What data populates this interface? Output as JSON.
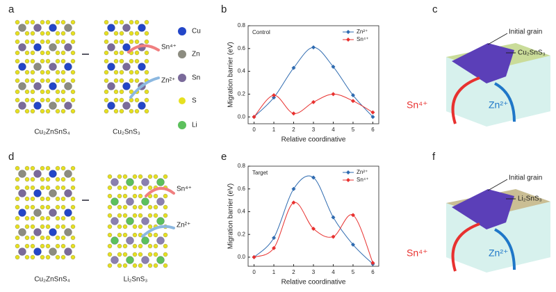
{
  "panel_labels": [
    "a",
    "b",
    "c",
    "d",
    "e",
    "f"
  ],
  "structure_top": {
    "left": "Cu₂ZnSnS₄",
    "right": "Cu₂SnS₃",
    "ions": [
      "Sn⁴⁺",
      "Zn²⁺"
    ]
  },
  "structure_bottom": {
    "left": "Cu₂ZnSnS₄",
    "right": "Li₂SnS₃",
    "ions": [
      "Sn⁴⁺",
      "Zn²⁺"
    ]
  },
  "element_legend": [
    "Cu",
    "Zn",
    "Sn",
    "S",
    "Li"
  ],
  "grain_top": {
    "grain": "Initial grain",
    "phase": "Cu₂SnS₃",
    "ions": [
      "Sn⁴⁺",
      "Zn²⁺"
    ]
  },
  "grain_bottom": {
    "grain": "Initial grain",
    "phase": "Li₂SnS₃",
    "ions": [
      "Sn⁴⁺",
      "Zn²⁺"
    ]
  },
  "chart_data": [
    {
      "type": "line",
      "annotation": "Control",
      "xlabel": "Relative coordinative",
      "ylabel": "Migration barrier (eV)",
      "x": [
        0,
        1,
        2,
        3,
        4,
        5,
        6
      ],
      "xlim": [
        -0.3,
        6.3
      ],
      "xticks": [
        0,
        1,
        2,
        3,
        4,
        5,
        6
      ],
      "ylim": [
        -0.06,
        0.8
      ],
      "yticks": [
        {
          "value": 0,
          "label": "0.0"
        },
        0.2,
        0.4,
        0.6,
        0.8
      ],
      "legend": "upper right",
      "series": [
        {
          "name": "Zn²⁺",
          "color": "#2f6bb0",
          "values": [
            0,
            0.17,
            0.43,
            0.61,
            0.44,
            0.19,
            0.0
          ]
        },
        {
          "name": "Sn⁴⁺",
          "color": "#e8312f",
          "values": [
            0,
            0.19,
            0.03,
            0.13,
            0.2,
            0.14,
            0.04
          ]
        }
      ]
    },
    {
      "type": "line",
      "annotation": "Target",
      "xlabel": "Relative coordinative",
      "ylabel": "Migration barrier (eV)",
      "x": [
        0,
        1,
        2,
        3,
        4,
        5,
        6
      ],
      "xlim": [
        -0.3,
        6.3
      ],
      "xticks": [
        0,
        1,
        2,
        3,
        4,
        5,
        6
      ],
      "ylim": [
        -0.08,
        0.8
      ],
      "yticks": [
        {
          "value": 0,
          "label": "0.0"
        },
        0.2,
        0.4,
        0.6,
        0.8
      ],
      "legend": "upper right",
      "series": [
        {
          "name": "Zn²⁺",
          "color": "#2f6bb0",
          "values": [
            0,
            0.17,
            0.6,
            0.7,
            0.35,
            0.11,
            -0.06
          ]
        },
        {
          "name": "Sn⁴⁺",
          "color": "#e8312f",
          "values": [
            0,
            0.08,
            0.48,
            0.25,
            0.18,
            0.37,
            -0.05
          ]
        }
      ]
    }
  ]
}
